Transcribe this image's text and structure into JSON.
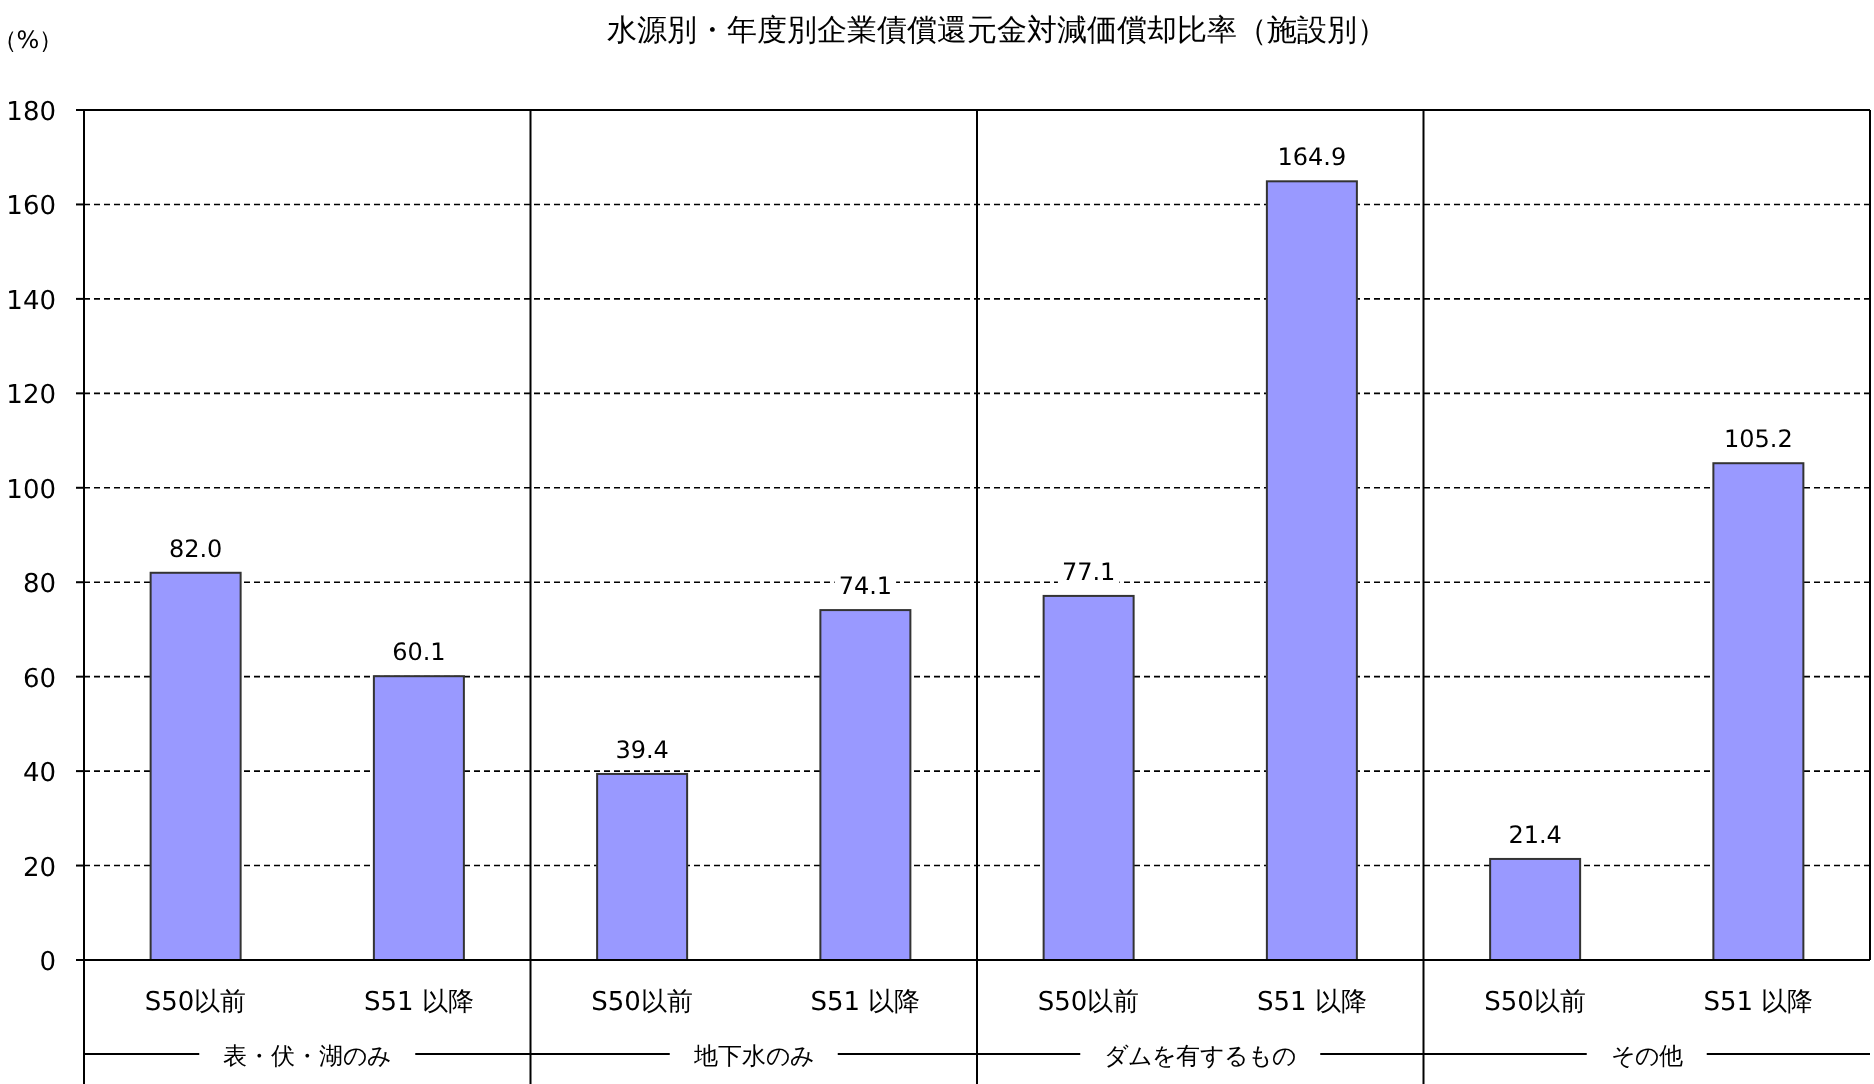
{
  "chart_data": {
    "type": "bar",
    "title": "水源別・年度別企業債償還元金対減価償却比率（施設別）",
    "ylabel": "（%）",
    "categories": [
      "S50以前",
      "S51 以降",
      "S50以前",
      "S51 以降",
      "S50以前",
      "S51 以降",
      "S50以前",
      "S51 以降"
    ],
    "values": [
      82.0,
      60.1,
      39.4,
      74.1,
      77.1,
      164.9,
      21.4,
      105.2
    ],
    "value_labels": [
      "82.0",
      "60.1",
      "39.4",
      "74.1",
      "77.1",
      "164.9",
      "21.4",
      "105.2"
    ],
    "color": "#9999ff",
    "ylim": [
      0,
      180
    ],
    "yticks": [
      0,
      20,
      40,
      60,
      80,
      100,
      120,
      140,
      160,
      180
    ],
    "grid": "y",
    "annotations": [
      "表・伏・湖のみ",
      "地下水のみ",
      "ダムを有するもの",
      "その他"
    ]
  }
}
